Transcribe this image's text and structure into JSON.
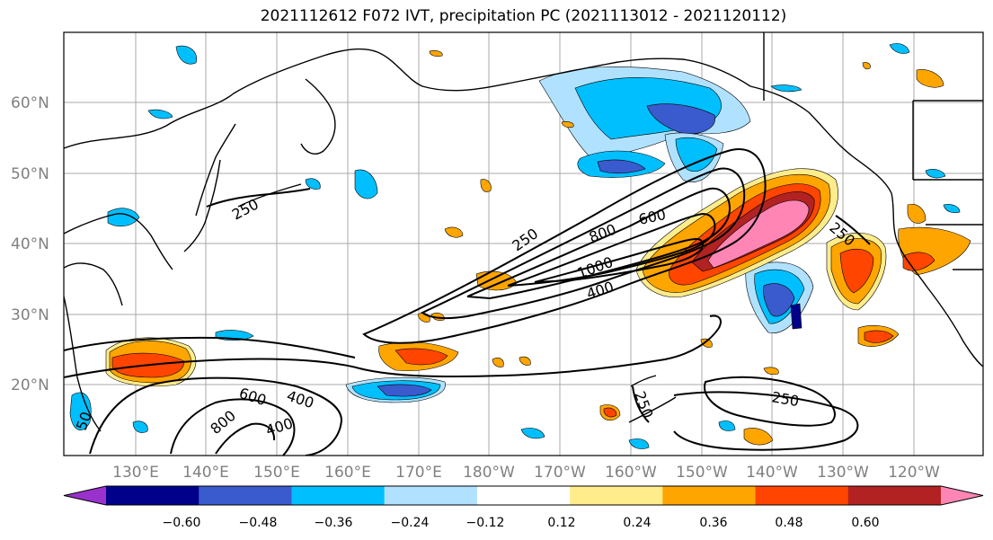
{
  "title": "2021112612 F072 IVT, precipitation PC (2021113012 - 2021120112)",
  "lat_labels": [
    "60°N",
    "50°N",
    "40°N",
    "30°N",
    "20°N"
  ],
  "lon_labels": [
    "130°E",
    "140°E",
    "150°E",
    "160°E",
    "170°E",
    "180°W",
    "170°W",
    "160°W",
    "150°W",
    "140°W",
    "130°W",
    "120°W"
  ],
  "colorbar": {
    "colors": [
      "#9932CC",
      "#00008B",
      "#3A5BCD",
      "#00BFFF",
      "#B0E2FF",
      "#FFFFFF",
      "#FFEC8B",
      "#FFA500",
      "#FF4500",
      "#B22222",
      "#FF86B4"
    ],
    "labels": [
      "−0.60",
      "−0.48",
      "−0.36",
      "−0.24",
      "−0.12",
      "0.12",
      "0.24",
      "0.36",
      "0.48",
      "0.60"
    ]
  },
  "contour_labels": [
    "250",
    "600",
    "800",
    "1000",
    "400",
    "250",
    "250",
    "600",
    "400",
    "800",
    "400",
    "250",
    "250",
    "50"
  ]
}
